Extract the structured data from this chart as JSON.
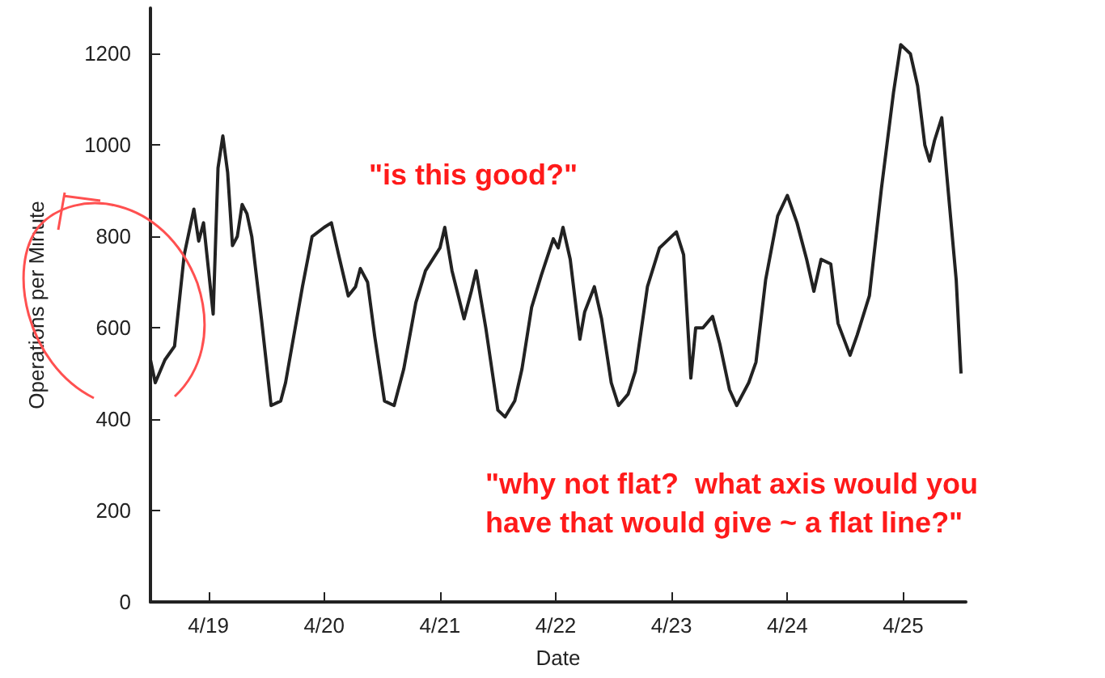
{
  "chart_data": {
    "type": "line",
    "xlabel": "Date",
    "ylabel": "Operations per Minute",
    "color": "#222222",
    "x": [
      "--04-18T12:00",
      "--04-18T13:00",
      "--04-18T15:00",
      "--04-18T17:00",
      "--04-18T19:00",
      "--04-18T21:00",
      "--04-18T22:00",
      "--04-18T23:00",
      "--04-19T01:00",
      "--04-19T02:00",
      "--04-19T03:00",
      "--04-19T04:00",
      "--04-19T05:00",
      "--04-19T06:00",
      "--04-19T07:00",
      "--04-19T08:00",
      "--04-19T09:00",
      "--04-19T11:00",
      "--04-19T13:00",
      "--04-19T15:00",
      "--04-19T16:00",
      "--04-19T19:30",
      "--04-19T21:30",
      "--04-20T00:00",
      "--04-20T01:30",
      "--04-20T03:00",
      "--04-20T05:00",
      "--04-20T06:30",
      "--04-20T07:30",
      "--04-20T09:00",
      "--04-20T10:30",
      "--04-20T12:30",
      "--04-20T14:30",
      "--04-20T16:30",
      "--04-20T19:00",
      "--04-20T21:00",
      "--04-21T00:00",
      "--04-21T01:00",
      "--04-21T02:30",
      "--04-21T05:00",
      "--04-21T06:30",
      "--04-21T07:30",
      "--04-21T09:30",
      "--04-21T12:00",
      "--04-21T13:30",
      "--04-21T15:30",
      "--04-21T17:00",
      "--04-21T19:00",
      "--04-21T21:00",
      "--04-21T23:30",
      "--04-22T00:30",
      "--04-22T01:30",
      "--04-22T03:00",
      "--04-22T05:00",
      "--04-22T06:00",
      "--04-22T08:00",
      "--04-22T09:30",
      "--04-22T11:30",
      "--04-22T13:00",
      "--04-22T15:00",
      "--04-22T16:30",
      "--04-22T19:00",
      "--04-22T21:30",
      "--04-22T23:30",
      "--04-23T01:00",
      "--04-23T02:30",
      "--04-23T04:00",
      "--04-23T05:00",
      "--04-23T06:30",
      "--04-23T08:30",
      "--04-23T10:00",
      "--04-23T12:00",
      "--04-23T13:30",
      "--04-23T16:00",
      "--04-23T17:30",
      "--04-23T19:30",
      "--04-23T22:00",
      "--04-24T00:00",
      "--04-24T02:00",
      "--04-24T04:00",
      "--04-24T05:30",
      "--04-24T07:00",
      "--04-24T09:00",
      "--04-24T10:30",
      "--04-24T13:00",
      "--04-24T14:30",
      "--04-24T17:00",
      "--04-24T19:30",
      "--04-24T22:00",
      "--04-24T23:30",
      "--04-25T01:30",
      "--04-25T03:00",
      "--04-25T04:30",
      "--04-25T05:30",
      "--04-25T06:30",
      "--04-25T08:00",
      "--04-25T09:00",
      "--04-25T11:00",
      "--04-25T12:00"
    ],
    "values": [
      530,
      480,
      530,
      560,
      760,
      860,
      790,
      830,
      630,
      950,
      1020,
      940,
      780,
      800,
      870,
      850,
      800,
      620,
      430,
      440,
      480,
      690,
      800,
      820,
      830,
      760,
      670,
      690,
      730,
      700,
      580,
      440,
      430,
      510,
      655,
      725,
      775,
      820,
      725,
      620,
      680,
      725,
      600,
      420,
      405,
      440,
      510,
      645,
      715,
      795,
      775,
      820,
      750,
      575,
      635,
      690,
      620,
      480,
      430,
      455,
      505,
      690,
      775,
      795,
      810,
      760,
      490,
      600,
      600,
      625,
      565,
      465,
      430,
      480,
      525,
      705,
      845,
      890,
      830,
      750,
      680,
      750,
      740,
      610,
      540,
      585,
      670,
      905,
      1115,
      1220,
      1200,
      1130,
      1000,
      965,
      1010,
      1060,
      940,
      705,
      500
    ],
    "xlim": [
      "--04-18T12:00",
      "--04-25T13:00"
    ],
    "xticks": [
      {
        "value": "--04-19",
        "label": "4/19"
      },
      {
        "value": "--04-20",
        "label": "4/20"
      },
      {
        "value": "--04-21",
        "label": "4/21"
      },
      {
        "value": "--04-22",
        "label": "4/22"
      },
      {
        "value": "--04-23",
        "label": "4/23"
      },
      {
        "value": "--04-24",
        "label": "4/24"
      },
      {
        "value": "--04-25",
        "label": "4/25"
      }
    ],
    "ylim": [
      0,
      1300
    ],
    "yticks": [
      0,
      200,
      400,
      600,
      800,
      1000,
      1200
    ],
    "grid": false,
    "marker": "none",
    "annotations": [
      "\"is this good?\"",
      "\"why not flat?  what axis would you\nhave that would give ~ a flat line?\""
    ]
  }
}
